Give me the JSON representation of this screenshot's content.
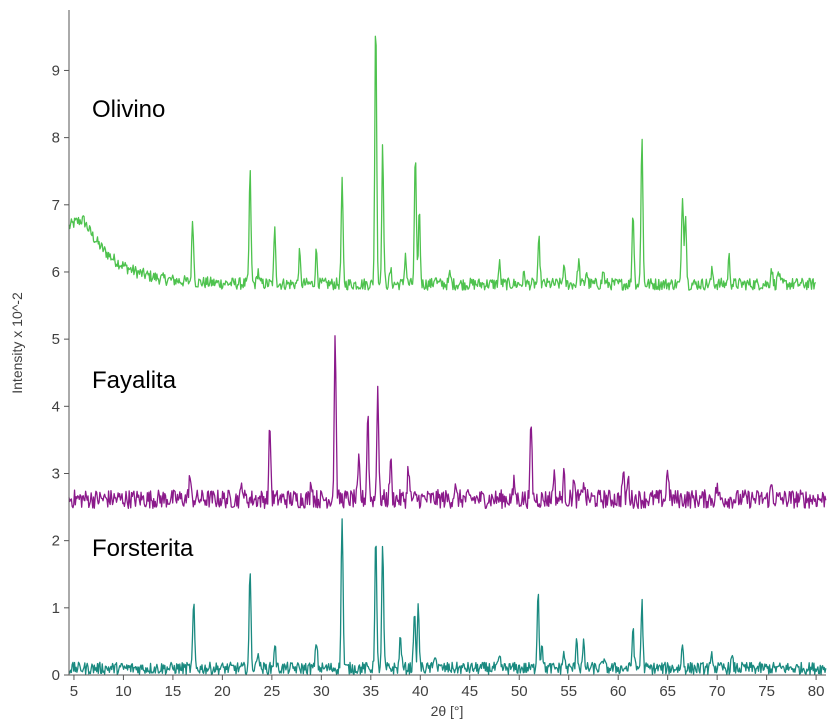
{
  "chart_data": {
    "type": "line",
    "title": "",
    "xlabel": "2θ [°]",
    "ylabel": "Intensity x 10^-2",
    "xlim": [
      4.5,
      81
    ],
    "ylim": [
      0,
      9.9
    ],
    "x_ticks": [
      5,
      10,
      15,
      20,
      25,
      30,
      35,
      40,
      45,
      50,
      55,
      60,
      65,
      70,
      75,
      80
    ],
    "y_ticks": [
      0,
      1,
      2,
      3,
      4,
      5,
      6,
      7,
      8,
      9
    ],
    "grid": false,
    "legend": "none",
    "series": [
      {
        "name": "Olivino",
        "color": "#4ec24e",
        "baseline": 5.82,
        "x_range": [
          4.5,
          80
        ],
        "peaks": [
          [
            17.0,
            0.95
          ],
          [
            22.8,
            1.65
          ],
          [
            23.6,
            0.2
          ],
          [
            25.3,
            0.8
          ],
          [
            27.8,
            0.45
          ],
          [
            29.5,
            0.5
          ],
          [
            32.1,
            1.5
          ],
          [
            35.5,
            4.0
          ],
          [
            36.2,
            2.05
          ],
          [
            37.0,
            0.2
          ],
          [
            38.5,
            0.45
          ],
          [
            39.5,
            1.9
          ],
          [
            39.9,
            1.1
          ],
          [
            41.5,
            0.12
          ],
          [
            43.0,
            0.15
          ],
          [
            48.0,
            0.3
          ],
          [
            50.5,
            0.15
          ],
          [
            52.0,
            0.65
          ],
          [
            54.5,
            0.25
          ],
          [
            56.0,
            0.35
          ],
          [
            56.8,
            0.2
          ],
          [
            58.5,
            0.2
          ],
          [
            61.5,
            1.1
          ],
          [
            62.4,
            2.25
          ],
          [
            66.5,
            1.35
          ],
          [
            66.8,
            1.1
          ],
          [
            69.5,
            0.2
          ],
          [
            71.2,
            0.4
          ],
          [
            75.5,
            0.25
          ],
          [
            76.2,
            0.2
          ]
        ],
        "hump": {
          "center": 6.0,
          "height": 0.95,
          "decay": 3.2
        }
      },
      {
        "name": "Fayalita",
        "color": "#8b1a8b",
        "baseline": 2.62,
        "x_range": [
          4.5,
          81
        ],
        "peaks": [
          [
            16.7,
            0.35
          ],
          [
            22.0,
            0.25
          ],
          [
            24.8,
            1.1
          ],
          [
            29.0,
            0.3
          ],
          [
            31.4,
            2.45
          ],
          [
            33.8,
            0.55
          ],
          [
            34.7,
            1.3
          ],
          [
            35.7,
            1.7
          ],
          [
            37.0,
            0.6
          ],
          [
            38.8,
            0.5
          ],
          [
            43.5,
            0.18
          ],
          [
            49.5,
            0.25
          ],
          [
            51.2,
            1.15
          ],
          [
            53.5,
            0.4
          ],
          [
            54.5,
            0.35
          ],
          [
            55.5,
            0.25
          ],
          [
            56.5,
            0.3
          ],
          [
            60.5,
            0.4
          ],
          [
            61.0,
            0.3
          ],
          [
            65.0,
            0.5
          ],
          [
            70.0,
            0.2
          ],
          [
            75.5,
            0.22
          ]
        ],
        "hump": null
      },
      {
        "name": "Forsterita",
        "color": "#1a8a80",
        "baseline": 0.1,
        "x_range": [
          4.5,
          81
        ],
        "peaks": [
          [
            17.1,
            0.95
          ],
          [
            22.8,
            1.42
          ],
          [
            23.6,
            0.3
          ],
          [
            25.3,
            0.38
          ],
          [
            29.5,
            0.42
          ],
          [
            32.1,
            2.3
          ],
          [
            35.5,
            1.95
          ],
          [
            36.2,
            1.82
          ],
          [
            38.0,
            0.5
          ],
          [
            39.4,
            0.85
          ],
          [
            39.8,
            0.92
          ],
          [
            41.5,
            0.25
          ],
          [
            48.0,
            0.15
          ],
          [
            51.9,
            1.18
          ],
          [
            52.3,
            0.4
          ],
          [
            54.5,
            0.25
          ],
          [
            55.8,
            0.48
          ],
          [
            56.5,
            0.35
          ],
          [
            58.5,
            0.15
          ],
          [
            61.5,
            0.62
          ],
          [
            62.4,
            0.98
          ],
          [
            66.5,
            0.35
          ],
          [
            69.5,
            0.2
          ],
          [
            71.5,
            0.15
          ]
        ],
        "hump": null
      }
    ]
  }
}
